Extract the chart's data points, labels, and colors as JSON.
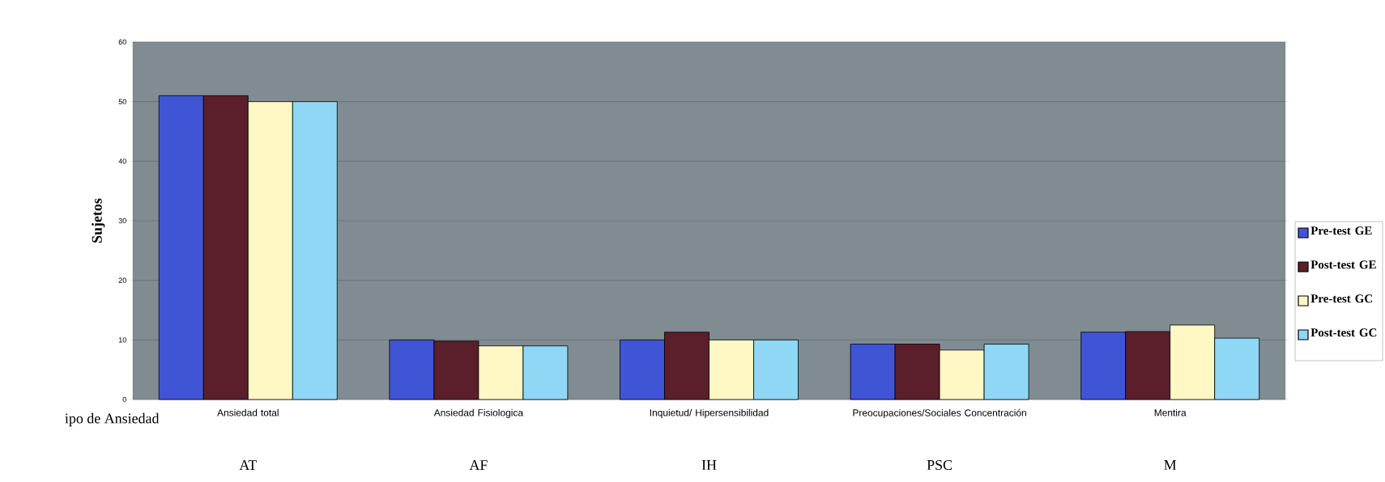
{
  "chart_data": {
    "type": "bar",
    "ylabel": "Sujetos",
    "xlabel": "ipo de Ansiedad",
    "categories": [
      "Ansiedad total",
      "Ansiedad Fisiologica",
      "Inquietud/ Hipersensibilidad",
      "Preocupaciones/Sociales Concentración",
      "Mentira"
    ],
    "annotations": [
      "AT",
      "AF",
      "IH",
      "PSC",
      "M"
    ],
    "series": [
      {
        "name": "Pre-test GE",
        "color": "#3f55d6",
        "values": [
          51,
          10,
          10,
          9.3,
          11.3
        ]
      },
      {
        "name": "Post-test GE",
        "color": "#5a1f2a",
        "values": [
          51,
          9.8,
          11.3,
          9.3,
          11.4
        ]
      },
      {
        "name": "Pre-test GC",
        "color": "#fff8c4",
        "values": [
          50,
          9,
          10,
          8.3,
          12.5
        ]
      },
      {
        "name": "Post-test GC",
        "color": "#8ed8f5",
        "values": [
          50,
          9,
          10,
          9.3,
          10.3
        ]
      }
    ],
    "ylim": [
      0,
      60
    ],
    "yticks": [
      0,
      10,
      20,
      30,
      40,
      50,
      60
    ],
    "grid": "y",
    "legend": "right"
  }
}
